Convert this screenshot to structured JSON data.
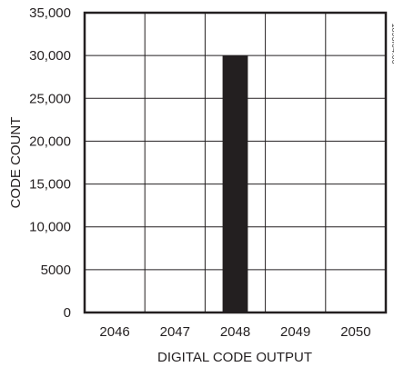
{
  "chart_data": {
    "type": "bar",
    "categories": [
      "2046",
      "2047",
      "2048",
      "2049",
      "2050"
    ],
    "values": [
      0,
      0,
      30000,
      0,
      0
    ],
    "xlabel": "DIGITAL CODE OUTPUT",
    "ylabel": "CODE COUNT",
    "ylim": [
      0,
      35000
    ],
    "y_ticks": [
      0,
      5000,
      10000,
      15000,
      20000,
      25000,
      30000,
      35000
    ],
    "y_tick_labels": [
      "0",
      "5000",
      "10,000",
      "15,000",
      "20,000",
      "25,000",
      "30,000",
      "35,000"
    ],
    "grid": true,
    "bar_color": "#231f20",
    "figure_id": "1893f04.06"
  }
}
